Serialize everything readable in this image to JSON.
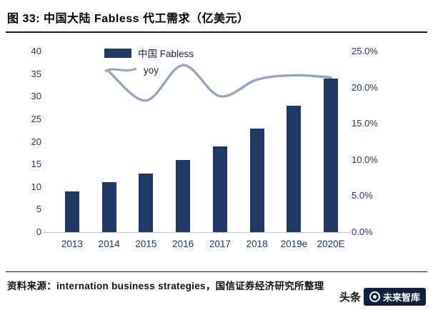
{
  "header": {
    "title": "图 33:  中国大陆 Fabless 代工需求（亿美元）"
  },
  "colors": {
    "bar": "#1F3864",
    "line": "#96A5BE",
    "axis_text": "#1F3864",
    "rule": "#101F3C"
  },
  "chart_data": {
    "type": "bar",
    "subtype": "bar+line-combo",
    "title": "中国大陆 Fabless 代工需求（亿美元）",
    "categories": [
      "2013",
      "2014",
      "2015",
      "2016",
      "2017",
      "2018",
      "2019e",
      "2020E"
    ],
    "series": [
      {
        "name": "中国 Fabless",
        "type": "bar",
        "axis": "left",
        "values": [
          9,
          11,
          13,
          16,
          19,
          23,
          28,
          34
        ]
      },
      {
        "name": "yoy",
        "type": "line",
        "axis": "right",
        "values": [
          null,
          22.2,
          18.2,
          23.1,
          18.8,
          21.1,
          21.7,
          21.4
        ]
      }
    ],
    "left_axis": {
      "min": 0,
      "max": 40,
      "step": 5,
      "ticks": [
        "40",
        "35",
        "30",
        "25",
        "20",
        "15",
        "10",
        "5",
        "0"
      ]
    },
    "right_axis": {
      "min": 0,
      "max": 25,
      "step": 5,
      "ticks": [
        "25.0%",
        "20.0%",
        "15.0%",
        "10.0%",
        "5.0%",
        "0.0%"
      ]
    },
    "legend_position": "top-center",
    "grid": false
  },
  "footer": {
    "source": "资料来源：internation business strategies，国信证券经济研究所整理"
  },
  "watermark": {
    "prefix": "头条",
    "badge_text": "未来智库"
  }
}
